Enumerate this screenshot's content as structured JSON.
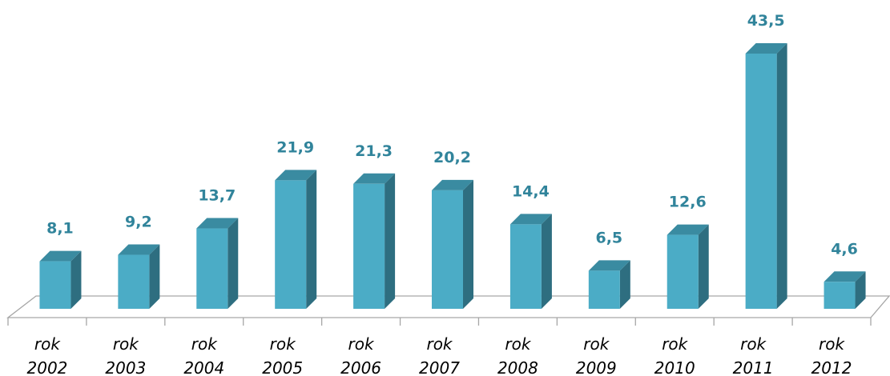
{
  "chart_data": {
    "type": "bar3d",
    "categories": [
      "rok 2002",
      "rok 2003",
      "rok 2004",
      "rok 2005",
      "rok 2006",
      "rok 2007",
      "rok 2008",
      "rok 2009",
      "rok 2010",
      "rok 2011",
      "rok 2012"
    ],
    "values": [
      8.1,
      9.2,
      13.7,
      21.9,
      21.3,
      20.2,
      14.4,
      6.5,
      12.6,
      43.5,
      4.6
    ],
    "value_labels": [
      "8,1",
      "9,2",
      "13,7",
      "21,9",
      "21,3",
      "20,2",
      "14,4",
      "6,5",
      "12,6",
      "43,5",
      "4,6"
    ],
    "color": "#4bacc6",
    "ylim": [
      0,
      45
    ]
  }
}
